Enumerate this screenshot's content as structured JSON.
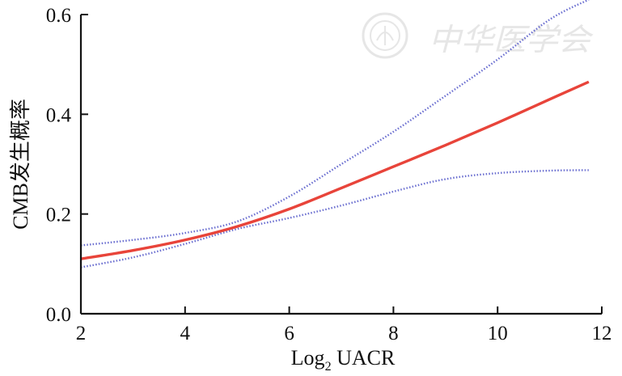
{
  "watermark": {
    "text": "中华医学会",
    "seal": "seal-logo"
  },
  "chart_data": {
    "type": "line",
    "xlabel_main": "Log",
    "xlabel_sub": "2",
    "xlabel_rest": " UACR",
    "ylabel": "CMB发生概率",
    "xlim": [
      2,
      12
    ],
    "ylim": [
      0.0,
      0.6
    ],
    "x_ticks": [
      2,
      4,
      6,
      8,
      10,
      12
    ],
    "y_ticks": [
      0.0,
      0.2,
      0.4,
      0.6
    ],
    "x_tick_labels": [
      "2",
      "4",
      "6",
      "8",
      "10",
      "12"
    ],
    "y_tick_labels": [
      "0.0",
      "0.2",
      "0.4",
      "0.6"
    ],
    "grid": false,
    "series": [
      {
        "role": "estimate",
        "style": "solid",
        "color": "#e8443a",
        "x": [
          2,
          3,
          4,
          5,
          6,
          7,
          8,
          9,
          10,
          11,
          11.75
        ],
        "y": [
          0.11,
          0.127,
          0.148,
          0.175,
          0.21,
          0.252,
          0.295,
          0.338,
          0.383,
          0.43,
          0.465
        ]
      },
      {
        "role": "upper-ci",
        "style": "dotted",
        "color": "#6a6ed0",
        "x": [
          2,
          3,
          4,
          5,
          6,
          7,
          8,
          9,
          10,
          11,
          11.75
        ],
        "y": [
          0.137,
          0.148,
          0.162,
          0.185,
          0.235,
          0.3,
          0.365,
          0.437,
          0.51,
          0.59,
          0.63
        ]
      },
      {
        "role": "lower-ci",
        "style": "dotted",
        "color": "#6a6ed0",
        "x": [
          2,
          3,
          4,
          5,
          6,
          7,
          8,
          9,
          10,
          11,
          11.75
        ],
        "y": [
          0.093,
          0.113,
          0.14,
          0.17,
          0.192,
          0.217,
          0.245,
          0.27,
          0.282,
          0.287,
          0.288
        ]
      }
    ]
  }
}
